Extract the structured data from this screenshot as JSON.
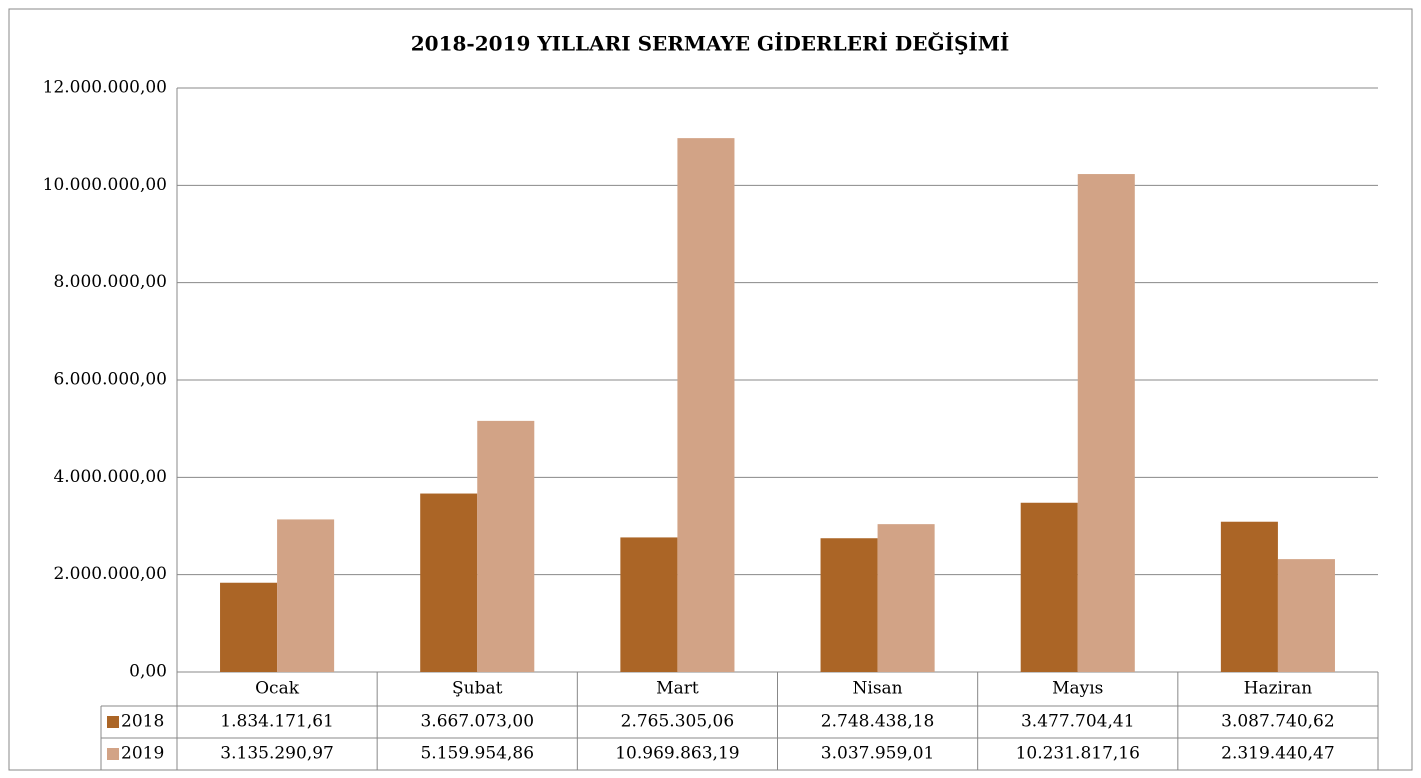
{
  "chart_data": {
    "type": "bar",
    "title": "2018-2019 YILLARI SERMAYE GİDERLERİ DEĞİŞİMİ",
    "categories": [
      "Ocak",
      "Şubat",
      "Mart",
      "Nisan",
      "Mayıs",
      "Haziran"
    ],
    "series": [
      {
        "name": "2018",
        "color": "#ab6526",
        "values": [
          1834171.61,
          3667073.0,
          2765305.06,
          2748438.18,
          3477704.41,
          3087740.62
        ],
        "value_labels": [
          "1.834.171,61",
          "3.667.073,00",
          "2.765.305,06",
          "2.748.438,18",
          "3.477.704,41",
          "3.087.740,62"
        ]
      },
      {
        "name": "2019",
        "color": "#d2a386",
        "values": [
          3135290.97,
          5159954.86,
          10969863.19,
          3037959.01,
          10231817.16,
          2319440.47
        ],
        "value_labels": [
          "3.135.290,97",
          "5.159.954,86",
          "10.969.863,19",
          "3.037.959,01",
          "10.231.817,16",
          "2.319.440,47"
        ]
      }
    ],
    "ylim": [
      0,
      12000000
    ],
    "yticks": [
      {
        "value": 0,
        "label": "0,00"
      },
      {
        "value": 2000000,
        "label": "2.000.000,00"
      },
      {
        "value": 4000000,
        "label": "4.000.000,00"
      },
      {
        "value": 6000000,
        "label": "6.000.000,00"
      },
      {
        "value": 8000000,
        "label": "8.000.000,00"
      },
      {
        "value": 10000000,
        "label": "10.000.000,00"
      },
      {
        "value": 12000000,
        "label": "12.000.000,00"
      }
    ],
    "grid": true
  }
}
